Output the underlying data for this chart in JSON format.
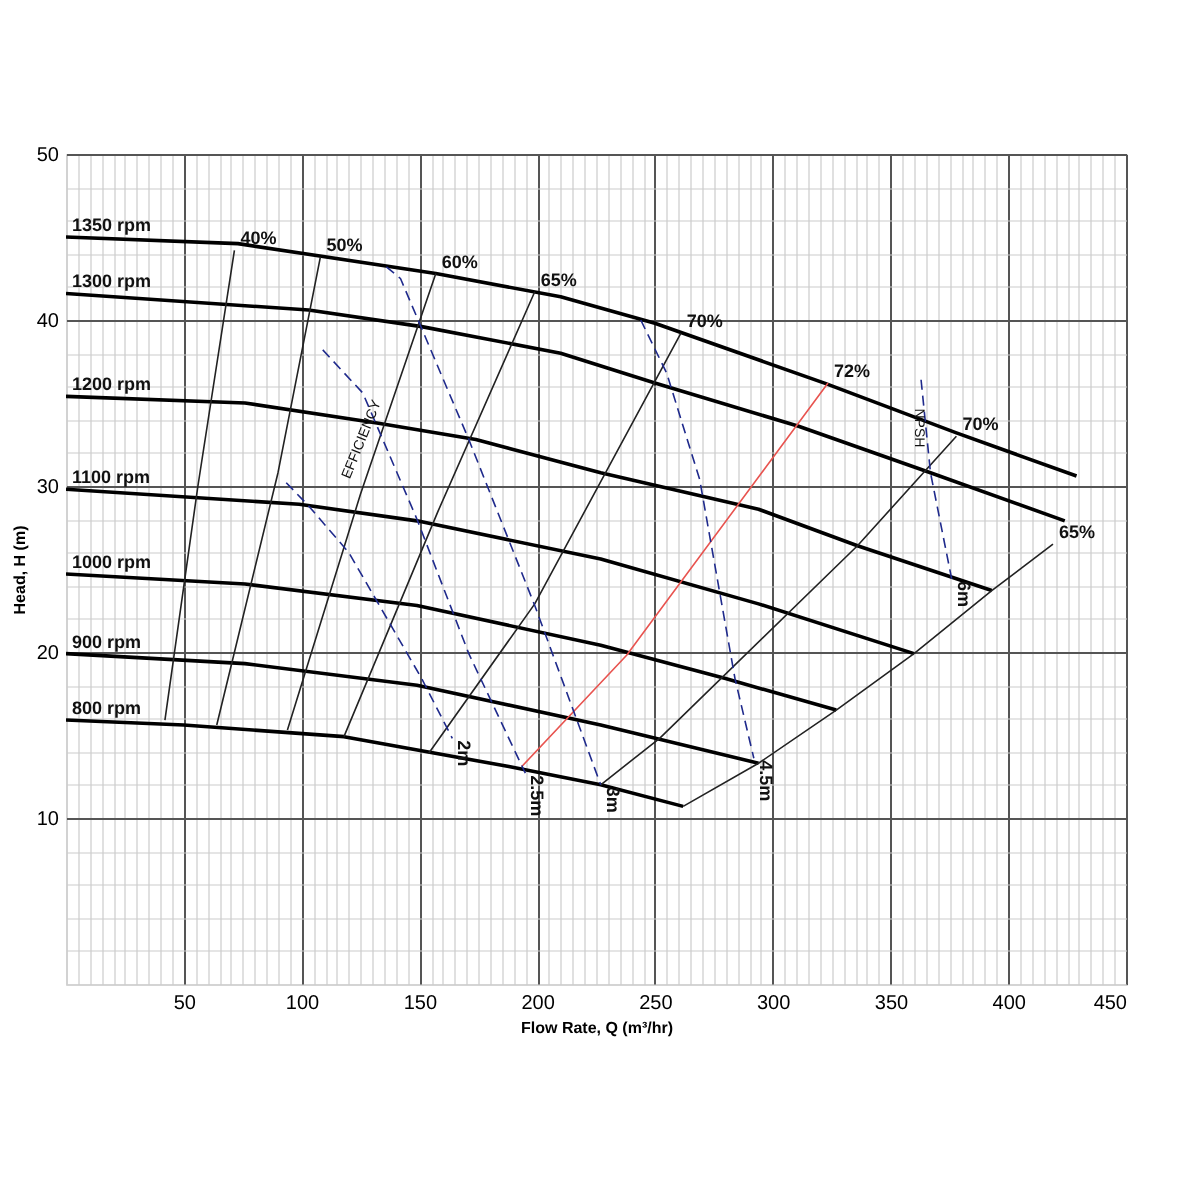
{
  "chart_data": {
    "type": "line",
    "xlabel": "Flow Rate, Q (m³/hr)",
    "ylabel": "Head, H (m)",
    "xlim": [
      0,
      450
    ],
    "ylim": [
      0,
      50
    ],
    "xticks": [
      {
        "value": 0,
        "label": null
      },
      {
        "value": 5,
        "label": null
      },
      {
        "value": 10,
        "label": null
      },
      {
        "value": 15,
        "label": null
      },
      {
        "value": 20,
        "label": null
      },
      {
        "value": 25,
        "label": null
      },
      {
        "value": 30,
        "label": null
      },
      {
        "value": 35,
        "label": null
      },
      {
        "value": 40,
        "label": null
      },
      {
        "value": 45,
        "label": null
      },
      50,
      {
        "value": 55,
        "label": null
      },
      {
        "value": 60,
        "label": null
      },
      {
        "value": 65,
        "label": null
      },
      {
        "value": 70,
        "label": null
      },
      {
        "value": 75,
        "label": null
      },
      {
        "value": 80,
        "label": null
      },
      {
        "value": 85,
        "label": null
      },
      {
        "value": 90,
        "label": null
      },
      {
        "value": 95,
        "label": null
      },
      100,
      {
        "value": 105,
        "label": null
      },
      {
        "value": 110,
        "label": null
      },
      {
        "value": 115,
        "label": null
      },
      {
        "value": 120,
        "label": null
      },
      {
        "value": 125,
        "label": null
      },
      {
        "value": 130,
        "label": null
      },
      {
        "value": 135,
        "label": null
      },
      {
        "value": 140,
        "label": null
      },
      {
        "value": 145,
        "label": null
      },
      150,
      {
        "value": 155,
        "label": null
      },
      {
        "value": 160,
        "label": null
      },
      {
        "value": 165,
        "label": null
      },
      {
        "value": 170,
        "label": null
      },
      {
        "value": 175,
        "label": null
      },
      {
        "value": 180,
        "label": null
      },
      {
        "value": 185,
        "label": null
      },
      {
        "value": 190,
        "label": null
      },
      {
        "value": 195,
        "label": null
      },
      200,
      {
        "value": 205,
        "label": null
      },
      {
        "value": 210,
        "label": null
      },
      {
        "value": 215,
        "label": null
      },
      {
        "value": 220,
        "label": null
      },
      {
        "value": 225,
        "label": null
      },
      {
        "value": 230,
        "label": null
      },
      {
        "value": 235,
        "label": null
      },
      {
        "value": 240,
        "label": null
      },
      {
        "value": 245,
        "label": null
      },
      250,
      {
        "value": 255,
        "label": null
      },
      {
        "value": 260,
        "label": null
      },
      {
        "value": 265,
        "label": null
      },
      {
        "value": 270,
        "label": null
      },
      {
        "value": 275,
        "label": null
      },
      {
        "value": 280,
        "label": null
      },
      {
        "value": 285,
        "label": null
      },
      {
        "value": 290,
        "label": null
      },
      {
        "value": 295,
        "label": null
      },
      300,
      {
        "value": 305,
        "label": null
      },
      {
        "value": 310,
        "label": null
      },
      {
        "value": 315,
        "label": null
      },
      {
        "value": 320,
        "label": null
      },
      {
        "value": 325,
        "label": null
      },
      {
        "value": 330,
        "label": null
      },
      {
        "value": 335,
        "label": null
      },
      {
        "value": 340,
        "label": null
      },
      {
        "value": 345,
        "label": null
      },
      350,
      {
        "value": 355,
        "label": null
      },
      {
        "value": 360,
        "label": null
      },
      {
        "value": 365,
        "label": null
      },
      {
        "value": 370,
        "label": null
      },
      {
        "value": 375,
        "label": null
      },
      {
        "value": 380,
        "label": null
      },
      {
        "value": 385,
        "label": null
      },
      {
        "value": 390,
        "label": null
      },
      {
        "value": 395,
        "label": null
      },
      400,
      {
        "value": 405,
        "label": null
      },
      {
        "value": 410,
        "label": null
      },
      {
        "value": 415,
        "label": null
      },
      {
        "value": 420,
        "label": null
      },
      {
        "value": 425,
        "label": null
      },
      {
        "value": 430,
        "label": null
      },
      {
        "value": 435,
        "label": null
      },
      {
        "value": 440,
        "label": null
      },
      {
        "value": 445,
        "label": null
      },
      450
    ],
    "yticks": [
      {
        "value": 0,
        "label": null
      },
      {
        "value": 2,
        "label": null
      },
      {
        "value": 4,
        "label": null
      },
      {
        "value": 6,
        "label": null
      },
      {
        "value": 8,
        "label": null
      },
      10,
      {
        "value": 12,
        "label": null
      },
      {
        "value": 14,
        "label": null
      },
      {
        "value": 16,
        "label": null
      },
      {
        "value": 18,
        "label": null
      },
      20,
      {
        "value": 22,
        "label": null
      },
      {
        "value": 24,
        "label": null
      },
      {
        "value": 26,
        "label": null
      },
      {
        "value": 28,
        "label": null
      },
      30,
      {
        "value": 32,
        "label": null
      },
      {
        "value": 34,
        "label": null
      },
      {
        "value": 36,
        "label": null
      },
      {
        "value": 38,
        "label": null
      },
      40,
      {
        "value": 42,
        "label": null
      },
      {
        "value": 44,
        "label": null
      },
      {
        "value": 46,
        "label": null
      },
      {
        "value": 48,
        "label": null
      },
      50
    ],
    "grid": true,
    "marker": "none",
    "series": [
      {
        "name": "1350 rpm",
        "color": "#000000",
        "line_style": "solid",
        "x": [
          429,
          378,
          322,
          250,
          210,
          157,
          73,
          0
        ],
        "values": [
          30.6,
          33.2,
          36.2,
          39.8,
          41.4,
          42.8,
          44.6,
          45.0
        ]
      },
      {
        "name": "1300 rpm",
        "color": "#000000",
        "line_style": "solid",
        "x": [
          424,
          367,
          311,
          250,
          210,
          151,
          103,
          0
        ],
        "values": [
          27.9,
          30.8,
          33.6,
          36.2,
          38.0,
          39.6,
          40.6,
          41.6
        ]
      },
      {
        "name": "1200 rpm",
        "color": "#000000",
        "line_style": "solid",
        "x": [
          393,
          336,
          294,
          227,
          174,
          132,
          76,
          0
        ],
        "values": [
          23.7,
          26.4,
          28.6,
          30.8,
          32.8,
          33.8,
          35.0,
          35.4
        ]
      },
      {
        "name": "1100 rpm",
        "color": "#000000",
        "line_style": "solid",
        "x": [
          360,
          294,
          227,
          149,
          99,
          0
        ],
        "values": [
          19.9,
          22.9,
          25.6,
          27.9,
          28.9,
          29.8
        ]
      },
      {
        "name": "1000 rpm",
        "color": "#000000",
        "line_style": "solid",
        "x": [
          327,
          280,
          227,
          149,
          76,
          0
        ],
        "values": [
          16.5,
          18.4,
          20.4,
          22.8,
          24.1,
          24.7
        ]
      },
      {
        "name": "900 rpm",
        "color": "#000000",
        "line_style": "solid",
        "x": [
          294,
          227,
          149,
          76,
          0
        ],
        "values": [
          13.3,
          15.6,
          18.0,
          19.3,
          19.9
        ]
      },
      {
        "name": "800 rpm",
        "color": "#000000",
        "line_style": "solid",
        "x": [
          262,
          227,
          188,
          118,
          50,
          0
        ],
        "values": [
          10.7,
          12.0,
          13.1,
          14.9,
          15.6,
          15.9
        ]
      },
      {
        "name": "40%",
        "color": "#222222",
        "line_style": "solid",
        "x": [
          42,
          56,
          71.5
        ],
        "values": [
          15.9,
          30,
          44.2
        ]
      },
      {
        "name": "50%",
        "color": "#222222",
        "line_style": "solid",
        "x": [
          64,
          90,
          108
        ],
        "values": [
          15.6,
          30.8,
          43.8
        ]
      },
      {
        "name": "60%",
        "color": "#222222",
        "line_style": "solid",
        "x": [
          94,
          125,
          157
        ],
        "values": [
          15.3,
          29.5,
          42.8
        ]
      },
      {
        "name": "65%",
        "color": "#222222",
        "line_style": "solid",
        "x": [
          118,
          158,
          199
        ],
        "values": [
          14.9,
          28.5,
          41.7
        ]
      },
      {
        "name": "70%",
        "color": "#222222",
        "line_style": "solid",
        "x": [
          154,
          199,
          261
        ],
        "values": [
          13.9,
          22.9,
          39.2
        ]
      },
      {
        "name": "72%",
        "color": "#e8534f",
        "line_style": "solid",
        "x": [
          193.5,
          238,
          323.5
        ],
        "values": [
          13.1,
          19.8,
          36.2
        ]
      },
      {
        "name": "70%",
        "color": "#222222",
        "line_style": "solid",
        "x": [
          227,
          252,
          336,
          378
        ],
        "values": [
          12.0,
          14.8,
          26.4,
          33.0
        ]
      },
      {
        "name": "65%",
        "color": "#222222",
        "line_style": "solid",
        "x": [
          262,
          294,
          327,
          360,
          393,
          419
        ],
        "values": [
          10.7,
          13.3,
          16.5,
          19.9,
          23.7,
          26.5
        ]
      },
      {
        "name": "2m",
        "color": "#1f2a8c",
        "line_style": "dashed",
        "x": [
          93.5,
          103,
          120,
          140,
          151,
          164
        ],
        "values": [
          30.2,
          28.8,
          26.0,
          21.1,
          18.4,
          14.8
        ]
      },
      {
        "name": "2.5m",
        "color": "#1f2a8c",
        "line_style": "dashed",
        "x": [
          109,
          126,
          149,
          171,
          195
        ],
        "values": [
          38.2,
          35.6,
          28.0,
          19.9,
          12.7
        ]
      },
      {
        "name": "3m",
        "color": "#1f2a8c",
        "line_style": "dashed",
        "x": [
          136,
          142,
          171,
          199,
          227
        ],
        "values": [
          43.2,
          42.5,
          32.8,
          22.8,
          12.0
        ]
      },
      {
        "name": "4.5m",
        "color": "#1f2a8c",
        "line_style": "dashed",
        "x": [
          244,
          255,
          269,
          284,
          292
        ],
        "values": [
          40.0,
          36.8,
          30.4,
          18.4,
          13.6
        ]
      },
      {
        "name": "6m",
        "color": "#1f2a8c",
        "line_style": "dashed",
        "x": [
          363,
          367,
          376
        ],
        "values": [
          36.4,
          30.8,
          24.4
        ]
      }
    ],
    "annotations": [
      "EFFICIENCY",
      "NPSH"
    ]
  }
}
